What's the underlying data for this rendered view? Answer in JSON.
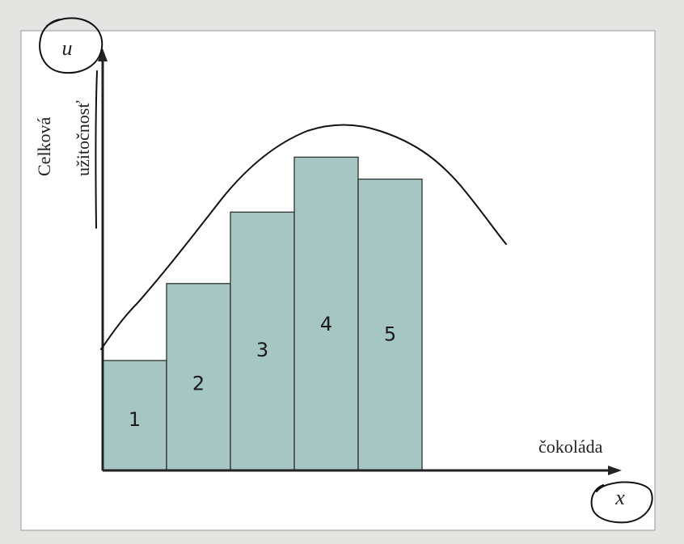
{
  "chart_data": {
    "type": "bar",
    "categories": [
      "1",
      "2",
      "3",
      "4",
      "5"
    ],
    "values": [
      2,
      3.4,
      4.7,
      5.7,
      5.3
    ],
    "ylim": [
      0,
      7.5
    ],
    "ylabel_lines": [
      "Celková",
      "užitočnosť"
    ],
    "xlabel": "čokoláda",
    "y_axis_symbol": "u",
    "x_axis_symbol": "x",
    "grid": false,
    "legend": "none",
    "annotations": [
      "hand-drawn curve over the bars",
      "hand-drawn circle around u",
      "hand-drawn circle around x"
    ],
    "colors": {
      "bar": "#a6c6c3",
      "frame_bg": "#ffffff",
      "page_bg": "#e4e4e2",
      "ink": "#111111"
    }
  }
}
